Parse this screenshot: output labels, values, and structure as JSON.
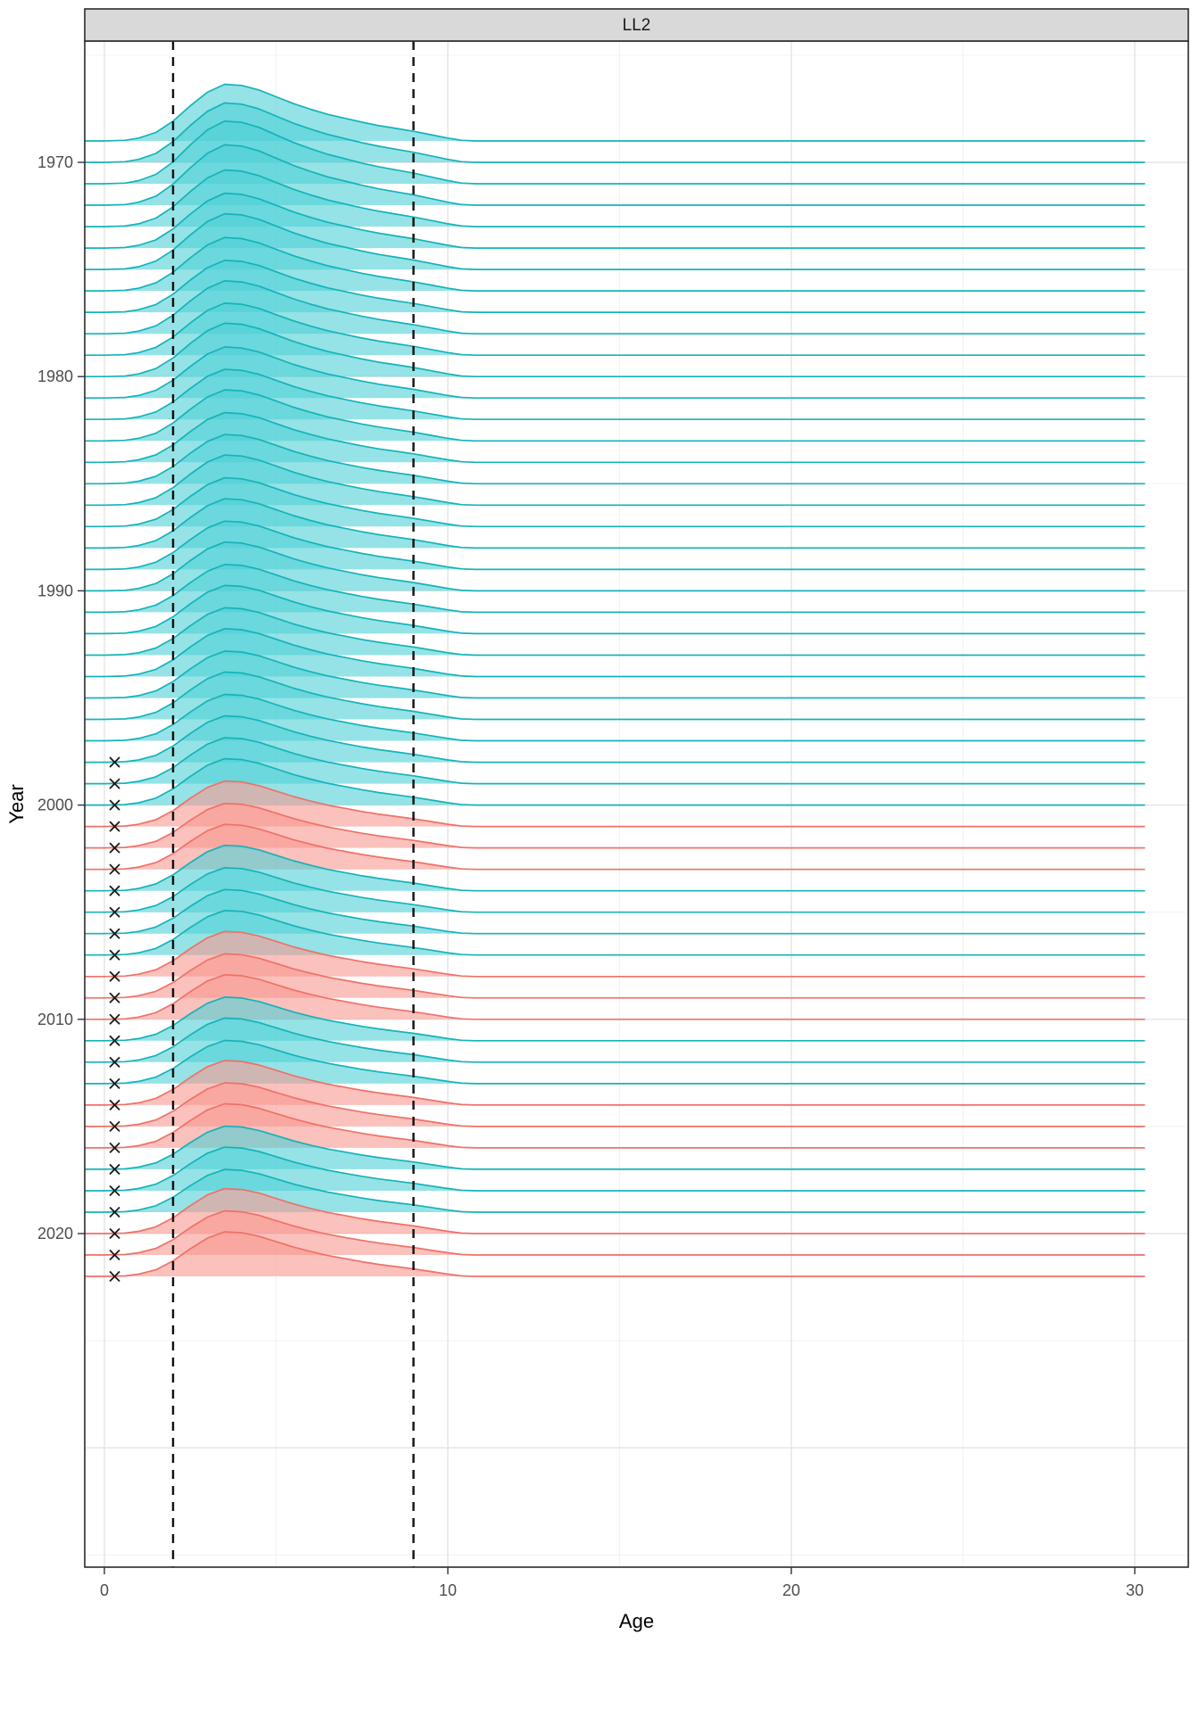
{
  "axes": {
    "x_title": "Age",
    "y_title": "Year",
    "x_ticks": [
      0,
      10,
      20,
      30
    ],
    "x_minor_grid": [
      5,
      15,
      25
    ],
    "y_ticks": [
      1970,
      1980,
      1990,
      2000,
      2010,
      2020
    ],
    "y_grid_major": [
      1970,
      1980,
      1990,
      2000,
      2010,
      2020,
      2030
    ],
    "y_grid_minor": [
      1965,
      1975,
      1985,
      1995,
      2005,
      2015,
      2025,
      2035
    ]
  },
  "chart_data": {
    "type": "ridgeline",
    "title": "LL2",
    "xlabel": "Age",
    "ylabel": "Year",
    "xlim": [
      -0.6,
      31.6
    ],
    "ylim_years": [
      1964.3,
      2035.6
    ],
    "grid": true,
    "vlines_dashed_at_age": [
      2,
      9
    ],
    "x_marker_age": 0.3,
    "line_end_age": 30.3,
    "colors": {
      "teal": {
        "stroke": "#14b3ba",
        "fill": "#4fd0d5"
      },
      "red": {
        "stroke": "#ef7168",
        "fill": "#f99790"
      },
      "marker": "#1a1a1a",
      "strip_fill": "#d9d9d9",
      "panel_border": "#2b2b2b",
      "grid_major": "#e4e4e4",
      "grid_minor": "#f2f2f2",
      "tick_label": "#4d4d4d"
    },
    "density_shape": [
      [
        0,
        0
      ],
      [
        0.6,
        0.01
      ],
      [
        1.0,
        0.05
      ],
      [
        1.5,
        0.15
      ],
      [
        2.0,
        0.35
      ],
      [
        2.5,
        0.62
      ],
      [
        3.0,
        0.86
      ],
      [
        3.5,
        1.0
      ],
      [
        4.0,
        0.98
      ],
      [
        4.5,
        0.9
      ],
      [
        5.0,
        0.78
      ],
      [
        5.5,
        0.66
      ],
      [
        6.0,
        0.56
      ],
      [
        6.5,
        0.47
      ],
      [
        7.0,
        0.4
      ],
      [
        7.5,
        0.33
      ],
      [
        8.0,
        0.27
      ],
      [
        8.5,
        0.22
      ],
      [
        9.0,
        0.17
      ],
      [
        9.5,
        0.11
      ],
      [
        10.0,
        0.05
      ],
      [
        10.4,
        0.01
      ],
      [
        10.8,
        0
      ]
    ],
    "series": [
      {
        "year": 1969,
        "color": "teal",
        "x_mark": false,
        "amp": 1.22
      },
      {
        "year": 1970,
        "color": "teal",
        "x_mark": false,
        "amp": 1.28
      },
      {
        "year": 1971,
        "color": "teal",
        "x_mark": false,
        "amp": 1.35
      },
      {
        "year": 1972,
        "color": "teal",
        "x_mark": false,
        "amp": 1.3
      },
      {
        "year": 1973,
        "color": "teal",
        "x_mark": false,
        "amp": 1.22
      },
      {
        "year": 1974,
        "color": "teal",
        "x_mark": false,
        "amp": 1.18
      },
      {
        "year": 1975,
        "color": "teal",
        "x_mark": false,
        "amp": 1.2
      },
      {
        "year": 1976,
        "color": "teal",
        "x_mark": false,
        "amp": 1.15
      },
      {
        "year": 1977,
        "color": "teal",
        "x_mark": false,
        "amp": 1.12
      },
      {
        "year": 1978,
        "color": "teal",
        "x_mark": false,
        "amp": 1.14
      },
      {
        "year": 1979,
        "color": "teal",
        "x_mark": false,
        "amp": 1.12
      },
      {
        "year": 1980,
        "color": "teal",
        "x_mark": false,
        "amp": 1.15
      },
      {
        "year": 1981,
        "color": "teal",
        "x_mark": false,
        "amp": 1.1
      },
      {
        "year": 1982,
        "color": "teal",
        "x_mark": false,
        "amp": 1.08
      },
      {
        "year": 1983,
        "color": "teal",
        "x_mark": false,
        "amp": 1.1
      },
      {
        "year": 1984,
        "color": "teal",
        "x_mark": false,
        "amp": 1.07
      },
      {
        "year": 1985,
        "color": "teal",
        "x_mark": false,
        "amp": 1.06
      },
      {
        "year": 1986,
        "color": "teal",
        "x_mark": false,
        "amp": 1.08
      },
      {
        "year": 1987,
        "color": "teal",
        "x_mark": false,
        "amp": 1.05
      },
      {
        "year": 1988,
        "color": "teal",
        "x_mark": false,
        "amp": 1.06
      },
      {
        "year": 1989,
        "color": "teal",
        "x_mark": false,
        "amp": 1.04
      },
      {
        "year": 1990,
        "color": "teal",
        "x_mark": false,
        "amp": 1.05
      },
      {
        "year": 1991,
        "color": "teal",
        "x_mark": false,
        "amp": 1.03
      },
      {
        "year": 1992,
        "color": "teal",
        "x_mark": false,
        "amp": 1.04
      },
      {
        "year": 1993,
        "color": "teal",
        "x_mark": false,
        "amp": 1.02
      },
      {
        "year": 1994,
        "color": "teal",
        "x_mark": false,
        "amp": 1.03
      },
      {
        "year": 1995,
        "color": "teal",
        "x_mark": false,
        "amp": 1.01
      },
      {
        "year": 1996,
        "color": "teal",
        "x_mark": false,
        "amp": 1.02
      },
      {
        "year": 1997,
        "color": "teal",
        "x_mark": false,
        "amp": 1.0
      },
      {
        "year": 1998,
        "color": "teal",
        "x_mark": true,
        "amp": 1.0
      },
      {
        "year": 1999,
        "color": "teal",
        "x_mark": true,
        "amp": 0.99
      },
      {
        "year": 2000,
        "color": "teal",
        "x_mark": true,
        "amp": 1.0
      },
      {
        "year": 2001,
        "color": "red",
        "x_mark": true,
        "amp": 0.98
      },
      {
        "year": 2002,
        "color": "red",
        "x_mark": true,
        "amp": 0.96
      },
      {
        "year": 2003,
        "color": "red",
        "x_mark": true,
        "amp": 0.97
      },
      {
        "year": 2004,
        "color": "teal",
        "x_mark": true,
        "amp": 0.98
      },
      {
        "year": 2005,
        "color": "teal",
        "x_mark": true,
        "amp": 0.96
      },
      {
        "year": 2006,
        "color": "teal",
        "x_mark": true,
        "amp": 0.95
      },
      {
        "year": 2007,
        "color": "teal",
        "x_mark": true,
        "amp": 0.96
      },
      {
        "year": 2008,
        "color": "red",
        "x_mark": true,
        "amp": 0.97
      },
      {
        "year": 2009,
        "color": "red",
        "x_mark": true,
        "amp": 0.95
      },
      {
        "year": 2010,
        "color": "red",
        "x_mark": true,
        "amp": 0.96
      },
      {
        "year": 2011,
        "color": "teal",
        "x_mark": true,
        "amp": 0.94
      },
      {
        "year": 2012,
        "color": "teal",
        "x_mark": true,
        "amp": 0.95
      },
      {
        "year": 2013,
        "color": "teal",
        "x_mark": true,
        "amp": 0.93
      },
      {
        "year": 2014,
        "color": "red",
        "x_mark": true,
        "amp": 0.96
      },
      {
        "year": 2015,
        "color": "red",
        "x_mark": true,
        "amp": 0.94
      },
      {
        "year": 2016,
        "color": "red",
        "x_mark": true,
        "amp": 0.95
      },
      {
        "year": 2017,
        "color": "teal",
        "x_mark": true,
        "amp": 0.93
      },
      {
        "year": 2018,
        "color": "teal",
        "x_mark": true,
        "amp": 0.94
      },
      {
        "year": 2019,
        "color": "teal",
        "x_mark": true,
        "amp": 0.92
      },
      {
        "year": 2020,
        "color": "red",
        "x_mark": true,
        "amp": 0.97
      },
      {
        "year": 2021,
        "color": "red",
        "x_mark": true,
        "amp": 0.95
      },
      {
        "year": 2022,
        "color": "red",
        "x_mark": true,
        "amp": 0.96
      }
    ]
  }
}
